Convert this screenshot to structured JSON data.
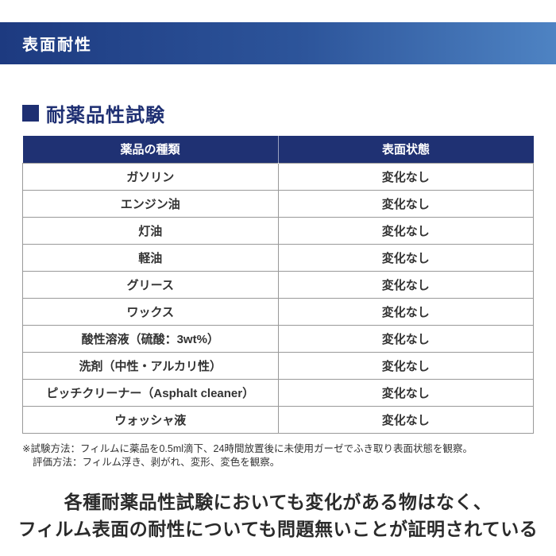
{
  "banner": {
    "title": "表面耐性"
  },
  "section": {
    "title": "耐薬品性試験"
  },
  "table": {
    "headers": {
      "chemical": "薬品の種類",
      "status": "表面状態"
    },
    "rows": [
      {
        "chemical": "ガソリン",
        "status": "変化なし"
      },
      {
        "chemical": "エンジン油",
        "status": "変化なし"
      },
      {
        "chemical": "灯油",
        "status": "変化なし"
      },
      {
        "chemical": "軽油",
        "status": "変化なし"
      },
      {
        "chemical": "グリース",
        "status": "変化なし"
      },
      {
        "chemical": "ワックス",
        "status": "変化なし"
      },
      {
        "chemical": "酸性溶液（硫酸：3wt%）",
        "status": "変化なし"
      },
      {
        "chemical": "洗剤（中性・アルカリ性）",
        "status": "変化なし"
      },
      {
        "chemical": "ピッチクリーナー（Asphalt cleaner）",
        "status": "変化なし"
      },
      {
        "chemical": "ウォッシャ液",
        "status": "変化なし"
      }
    ]
  },
  "footnote": {
    "line1": "※試験方法：フィルムに薬品を0.5ml滴下、24時間放置後に未使用ガーゼでふき取り表面状態を観察。",
    "line2": "評価方法：フィルム浮き、剥がれ、変形、変色を観察。"
  },
  "conclusion": {
    "line1": "各種耐薬品性試験においても変化がある物はなく、",
    "line2": "フィルム表面の耐性についても問題無いことが証明されている"
  },
  "colors": {
    "banner_gradient_start": "#1d3a80",
    "banner_gradient_end": "#4e83c3",
    "table_header_bg": "#1f3173",
    "heading_navy": "#1e2f72",
    "border_gray": "#999999",
    "text_dark": "#333333"
  }
}
